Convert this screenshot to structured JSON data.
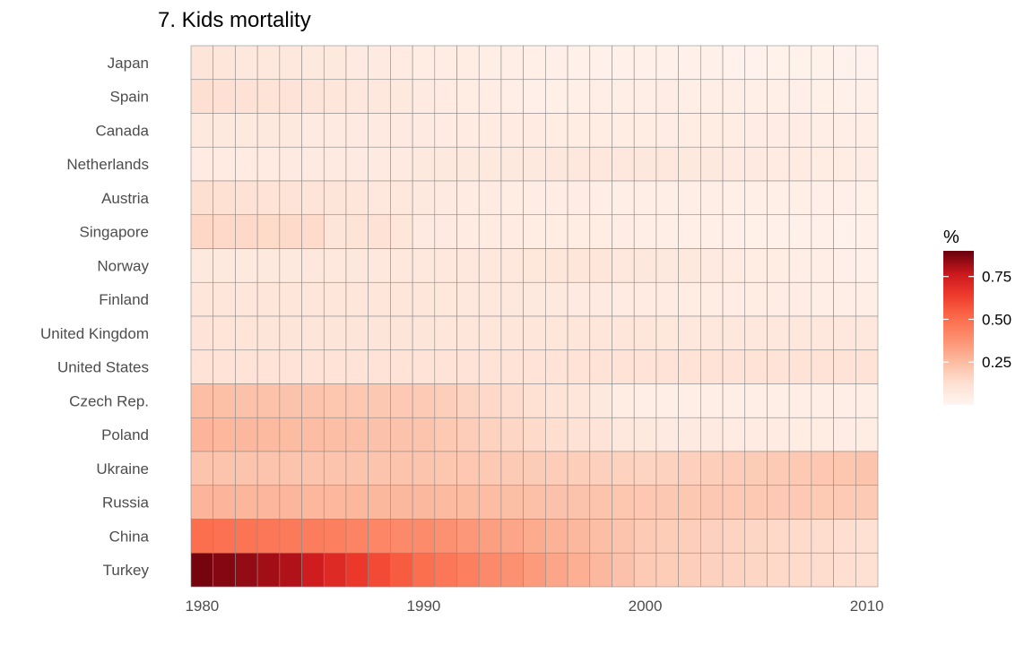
{
  "chart_data": {
    "type": "heatmap",
    "title": "7. Kids mortality",
    "xlabel": "",
    "ylabel": "",
    "legend_title": "%",
    "legend_position": "right",
    "color_low": "#fff5f0",
    "color_high": "#67000d",
    "color_range": [
      0,
      0.9
    ],
    "legend_ticks": [
      0.25,
      0.5,
      0.75
    ],
    "legend_tick_labels": [
      "0.25",
      "0.50",
      "0.75"
    ],
    "x_start": 1980,
    "x_end": 2010,
    "x_ticks": [
      1980,
      1990,
      2000,
      2010
    ],
    "x_tick_labels": [
      "1980",
      "1990",
      "2000",
      "2010"
    ],
    "rows": [
      "Japan",
      "Spain",
      "Canada",
      "Netherlands",
      "Austria",
      "Singapore",
      "Norway",
      "Finland",
      "United Kingdom",
      "United States",
      "Czech Rep.",
      "Poland",
      "Ukraine",
      "Russia",
      "China",
      "Turkey"
    ],
    "values": [
      [
        0.094,
        0.09,
        0.086,
        0.083,
        0.079,
        0.075,
        0.071,
        0.068,
        0.064,
        0.06,
        0.056,
        0.053,
        0.049,
        0.045,
        0.041,
        0.038,
        0.034,
        0.03,
        0.029,
        0.028,
        0.027,
        0.026,
        0.025,
        0.024,
        0.023,
        0.022,
        0.021,
        0.02,
        0.019,
        0.018,
        0.017
      ],
      [
        0.125,
        0.119,
        0.113,
        0.107,
        0.101,
        0.095,
        0.089,
        0.083,
        0.077,
        0.071,
        0.065,
        0.059,
        0.053,
        0.047,
        0.041,
        0.035,
        0.037,
        0.039,
        0.041,
        0.043,
        0.045,
        0.046,
        0.044,
        0.042,
        0.04,
        0.038,
        0.036,
        0.034,
        0.032,
        0.03,
        0.028
      ],
      [
        0.075,
        0.074,
        0.073,
        0.072,
        0.071,
        0.069,
        0.068,
        0.067,
        0.066,
        0.065,
        0.064,
        0.063,
        0.062,
        0.061,
        0.06,
        0.058,
        0.057,
        0.056,
        0.055,
        0.054,
        0.053,
        0.052,
        0.051,
        0.05,
        0.049,
        0.048,
        0.047,
        0.046,
        0.045,
        0.044,
        0.043
      ],
      [
        0.06,
        0.061,
        0.062,
        0.063,
        0.064,
        0.065,
        0.066,
        0.067,
        0.068,
        0.069,
        0.07,
        0.071,
        0.072,
        0.073,
        0.074,
        0.075,
        0.076,
        0.077,
        0.078,
        0.079,
        0.08,
        0.077,
        0.074,
        0.07,
        0.067,
        0.064,
        0.061,
        0.058,
        0.054,
        0.051,
        0.048
      ],
      [
        0.125,
        0.12,
        0.115,
        0.11,
        0.104,
        0.099,
        0.094,
        0.089,
        0.084,
        0.079,
        0.074,
        0.068,
        0.063,
        0.058,
        0.053,
        0.048,
        0.047,
        0.046,
        0.045,
        0.044,
        0.043,
        0.042,
        0.041,
        0.04,
        0.039,
        0.038,
        0.037,
        0.036,
        0.035,
        0.034,
        0.033
      ],
      [
        0.155,
        0.153,
        0.15,
        0.148,
        0.146,
        0.143,
        0.094,
        0.104,
        0.113,
        0.091,
        0.068,
        0.066,
        0.063,
        0.061,
        0.058,
        0.056,
        0.054,
        0.051,
        0.049,
        0.046,
        0.044,
        0.041,
        0.039,
        0.036,
        0.034,
        0.032,
        0.029,
        0.027,
        0.024,
        0.022,
        0.03
      ],
      [
        0.07,
        0.071,
        0.072,
        0.073,
        0.074,
        0.076,
        0.077,
        0.078,
        0.079,
        0.08,
        0.081,
        0.082,
        0.084,
        0.085,
        0.086,
        0.087,
        0.088,
        0.089,
        0.09,
        0.085,
        0.08,
        0.075,
        0.07,
        0.065,
        0.06,
        0.055,
        0.05,
        0.045,
        0.04,
        0.035,
        0.03
      ],
      [
        0.09,
        0.09,
        0.09,
        0.09,
        0.09,
        0.09,
        0.09,
        0.09,
        0.09,
        0.09,
        0.09,
        0.087,
        0.084,
        0.081,
        0.078,
        0.075,
        0.072,
        0.069,
        0.066,
        0.063,
        0.06,
        0.058,
        0.056,
        0.054,
        0.052,
        0.05,
        0.048,
        0.046,
        0.044,
        0.042,
        0.04
      ],
      [
        0.1,
        0.099,
        0.099,
        0.098,
        0.098,
        0.097,
        0.096,
        0.096,
        0.095,
        0.094,
        0.094,
        0.093,
        0.093,
        0.092,
        0.091,
        0.091,
        0.09,
        0.089,
        0.089,
        0.088,
        0.088,
        0.087,
        0.086,
        0.086,
        0.085,
        0.084,
        0.084,
        0.083,
        0.083,
        0.082,
        0.081
      ],
      [
        0.11,
        0.11,
        0.11,
        0.11,
        0.11,
        0.11,
        0.11,
        0.11,
        0.11,
        0.11,
        0.11,
        0.11,
        0.11,
        0.11,
        0.11,
        0.11,
        0.11,
        0.11,
        0.11,
        0.11,
        0.11,
        0.11,
        0.11,
        0.11,
        0.11,
        0.11,
        0.11,
        0.11,
        0.11,
        0.11,
        0.11
      ],
      [
        0.24,
        0.236,
        0.232,
        0.228,
        0.224,
        0.22,
        0.216,
        0.212,
        0.208,
        0.204,
        0.2,
        0.184,
        0.168,
        0.152,
        0.136,
        0.12,
        0.104,
        0.088,
        0.072,
        0.056,
        0.04,
        0.04,
        0.04,
        0.04,
        0.04,
        0.04,
        0.04,
        0.04,
        0.04,
        0.04,
        0.04
      ],
      [
        0.27,
        0.265,
        0.26,
        0.255,
        0.25,
        0.245,
        0.24,
        0.235,
        0.23,
        0.225,
        0.22,
        0.205,
        0.19,
        0.175,
        0.16,
        0.145,
        0.13,
        0.115,
        0.1,
        0.085,
        0.07,
        0.068,
        0.066,
        0.064,
        0.062,
        0.06,
        0.058,
        0.056,
        0.054,
        0.052,
        0.05
      ],
      [
        0.22,
        0.22,
        0.22,
        0.22,
        0.22,
        0.22,
        0.22,
        0.22,
        0.22,
        0.22,
        0.22,
        0.215,
        0.21,
        0.205,
        0.2,
        0.195,
        0.19,
        0.185,
        0.18,
        0.175,
        0.17,
        0.175,
        0.18,
        0.185,
        0.19,
        0.195,
        0.2,
        0.205,
        0.21,
        0.215,
        0.22
      ],
      [
        0.27,
        0.269,
        0.268,
        0.267,
        0.266,
        0.265,
        0.264,
        0.263,
        0.262,
        0.261,
        0.26,
        0.255,
        0.25,
        0.245,
        0.24,
        0.235,
        0.23,
        0.225,
        0.22,
        0.215,
        0.21,
        0.209,
        0.208,
        0.207,
        0.206,
        0.205,
        0.204,
        0.203,
        0.202,
        0.201,
        0.2
      ],
      [
        0.5,
        0.49,
        0.48,
        0.47,
        0.46,
        0.45,
        0.44,
        0.43,
        0.42,
        0.41,
        0.4,
        0.38,
        0.36,
        0.34,
        0.32,
        0.3,
        0.28,
        0.26,
        0.24,
        0.22,
        0.2,
        0.192,
        0.184,
        0.176,
        0.168,
        0.16,
        0.152,
        0.144,
        0.136,
        0.128,
        0.12
      ],
      [
        0.88,
        0.86,
        0.84,
        0.82,
        0.8,
        0.75,
        0.7,
        0.65,
        0.6,
        0.55,
        0.5,
        0.47,
        0.44,
        0.41,
        0.38,
        0.35,
        0.32,
        0.29,
        0.26,
        0.23,
        0.2,
        0.192,
        0.184,
        0.176,
        0.168,
        0.16,
        0.152,
        0.144,
        0.136,
        0.128,
        0.12
      ]
    ]
  }
}
